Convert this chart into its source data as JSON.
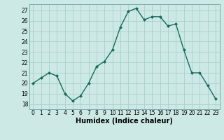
{
  "x": [
    0,
    1,
    2,
    3,
    4,
    5,
    6,
    7,
    8,
    9,
    10,
    11,
    12,
    13,
    14,
    15,
    16,
    17,
    18,
    19,
    20,
    21,
    22,
    23
  ],
  "y": [
    20.0,
    20.5,
    21.0,
    20.7,
    19.0,
    18.3,
    18.8,
    20.0,
    21.6,
    22.1,
    23.2,
    25.4,
    26.9,
    27.2,
    26.1,
    26.4,
    26.4,
    25.5,
    25.7,
    23.2,
    21.0,
    21.0,
    19.8,
    18.5
  ],
  "line_color": "#1a6b5a",
  "marker": "D",
  "marker_size": 2,
  "bg_color": "#cce9e5",
  "grid_color": "#aacfcc",
  "xlabel": "Humidex (Indice chaleur)",
  "ylim": [
    17.5,
    27.6
  ],
  "xlim": [
    -0.5,
    23.5
  ],
  "yticks": [
    18,
    19,
    20,
    21,
    22,
    23,
    24,
    25,
    26,
    27
  ],
  "xticks": [
    0,
    1,
    2,
    3,
    4,
    5,
    6,
    7,
    8,
    9,
    10,
    11,
    12,
    13,
    14,
    15,
    16,
    17,
    18,
    19,
    20,
    21,
    22,
    23
  ],
  "tick_fontsize": 5.5,
  "xlabel_fontsize": 7.0,
  "line_width": 1.0
}
